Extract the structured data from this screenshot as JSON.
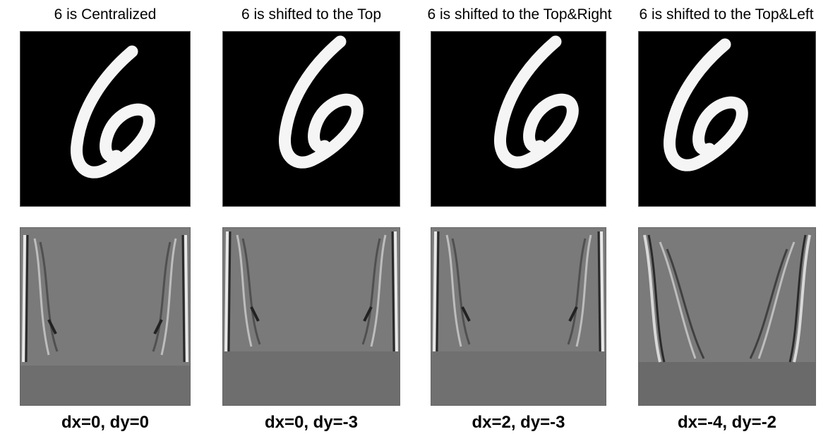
{
  "panels": [
    {
      "title": "6 is Centralized",
      "caption": "dx=0, dy=0",
      "dx": 0,
      "dy": 0
    },
    {
      "title": "6 is shifted to the Top",
      "caption": "dx=0, dy=-3",
      "dx": 0,
      "dy": -3
    },
    {
      "title": "6 is shifted to the Top&Right",
      "caption": "dx=2, dy=-3",
      "dx": 2,
      "dy": -3
    },
    {
      "title": "6 is shifted to the Top&Left",
      "caption": "dx=-4, dy=-2",
      "dx": -4,
      "dy": -2
    }
  ],
  "colors": {
    "digit_background": "#000000",
    "digit_stroke": "#f5f5f5",
    "feature_background": "#7a7a7a",
    "feature_bottom": "#6e6e6e"
  }
}
